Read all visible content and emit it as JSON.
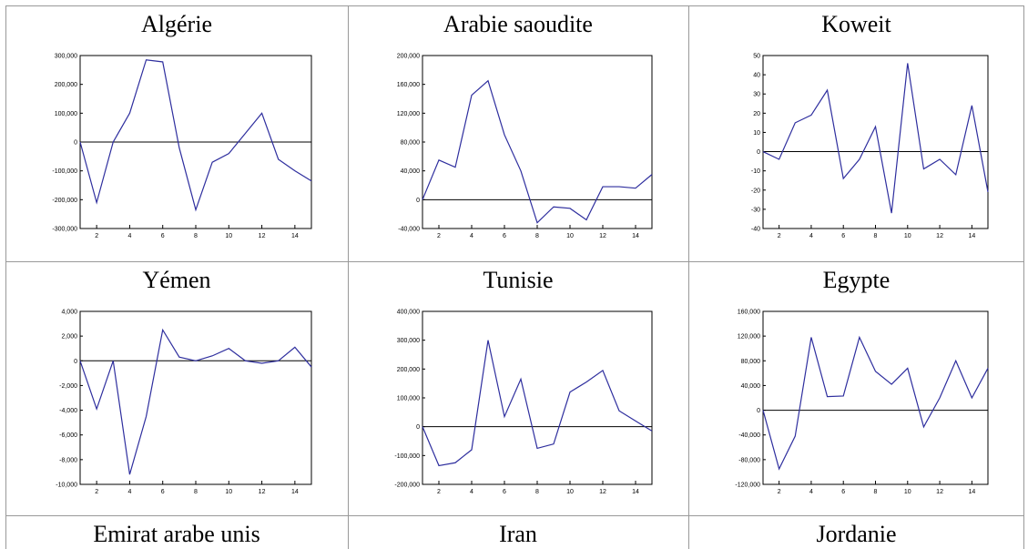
{
  "chart_data": [
    {
      "type": "line",
      "title": "Algérie",
      "color": "#2e2e9e",
      "zero_line": true,
      "x": [
        1,
        2,
        3,
        4,
        5,
        6,
        7,
        8,
        9,
        10,
        11,
        12,
        13,
        14,
        15
      ],
      "values": [
        0,
        -210000,
        0,
        100000,
        285000,
        278000,
        -20000,
        -235000,
        -70000,
        -40000,
        30000,
        100000,
        -60000,
        -100000,
        -135000
      ],
      "xlim": [
        1,
        15
      ],
      "xticks": [
        2,
        4,
        6,
        8,
        10,
        12,
        14
      ],
      "ylim": [
        -300000,
        300000
      ],
      "yticks": [
        {
          "value": -300000,
          "label": "-300,000"
        },
        {
          "value": -200000,
          "label": "-200,000"
        },
        {
          "value": -100000,
          "label": "-100,000"
        },
        0,
        {
          "value": 100000,
          "label": "100,000"
        },
        {
          "value": 200000,
          "label": "200,000"
        },
        {
          "value": 300000,
          "label": "300,000"
        }
      ]
    },
    {
      "type": "line",
      "title": "Arabie saoudite",
      "color": "#2e2e9e",
      "zero_line": true,
      "x": [
        1,
        2,
        3,
        4,
        5,
        6,
        7,
        8,
        9,
        10,
        11,
        12,
        13,
        14,
        15
      ],
      "values": [
        0,
        55000,
        45000,
        145000,
        165000,
        90000,
        40000,
        -32000,
        -10000,
        -12000,
        -28000,
        18000,
        18000,
        16000,
        35000
      ],
      "xlim": [
        1,
        15
      ],
      "xticks": [
        2,
        4,
        6,
        8,
        10,
        12,
        14
      ],
      "ylim": [
        -40000,
        200000
      ],
      "yticks": [
        {
          "value": -40000,
          "label": "-40,000"
        },
        0,
        {
          "value": 40000,
          "label": "40,000"
        },
        {
          "value": 80000,
          "label": "80,000"
        },
        {
          "value": 120000,
          "label": "120,000"
        },
        {
          "value": 160000,
          "label": "160,000"
        },
        {
          "value": 200000,
          "label": "200,000"
        }
      ]
    },
    {
      "type": "line",
      "title": "Koweit",
      "color": "#2e2e9e",
      "zero_line": true,
      "x": [
        1,
        2,
        3,
        4,
        5,
        6,
        7,
        8,
        9,
        10,
        11,
        12,
        13,
        14,
        15
      ],
      "values": [
        0,
        -4,
        15,
        19,
        32,
        -14,
        -4,
        13,
        -32,
        46,
        -9,
        -4,
        -12,
        24,
        -21
      ],
      "xlim": [
        1,
        15
      ],
      "xticks": [
        2,
        4,
        6,
        8,
        10,
        12,
        14
      ],
      "ylim": [
        -40,
        50
      ],
      "yticks": [
        -40,
        -30,
        -20,
        -10,
        0,
        10,
        20,
        30,
        40,
        50
      ]
    },
    {
      "type": "line",
      "title": "Yémen",
      "color": "#2e2e9e",
      "zero_line": true,
      "x": [
        1,
        2,
        3,
        4,
        5,
        6,
        7,
        8,
        9,
        10,
        11,
        12,
        13,
        14,
        15
      ],
      "values": [
        0,
        -3900,
        0,
        -9200,
        -4500,
        2500,
        300,
        0,
        400,
        1000,
        0,
        -200,
        0,
        1100,
        -500
      ],
      "xlim": [
        1,
        15
      ],
      "xticks": [
        2,
        4,
        6,
        8,
        10,
        12,
        14
      ],
      "ylim": [
        -10000,
        4000
      ],
      "yticks": [
        {
          "value": -10000,
          "label": "-10,000"
        },
        {
          "value": -8000,
          "label": "-8,000"
        },
        {
          "value": -6000,
          "label": "-6,000"
        },
        {
          "value": -4000,
          "label": "-4,000"
        },
        {
          "value": -2000,
          "label": "-2,000"
        },
        0,
        {
          "value": 2000,
          "label": "2,000"
        },
        {
          "value": 4000,
          "label": "4,000"
        }
      ]
    },
    {
      "type": "line",
      "title": "Tunisie",
      "color": "#2e2e9e",
      "zero_line": true,
      "x": [
        1,
        2,
        3,
        4,
        5,
        6,
        7,
        8,
        9,
        10,
        11,
        12,
        13,
        14,
        15
      ],
      "values": [
        0,
        -135000,
        -125000,
        -80000,
        300000,
        35000,
        165000,
        -75000,
        -60000,
        120000,
        155000,
        195000,
        55000,
        20000,
        -15000
      ],
      "xlim": [
        1,
        15
      ],
      "xticks": [
        2,
        4,
        6,
        8,
        10,
        12,
        14
      ],
      "ylim": [
        -200000,
        400000
      ],
      "yticks": [
        {
          "value": -200000,
          "label": "-200,000"
        },
        {
          "value": -100000,
          "label": "-100,000"
        },
        0,
        {
          "value": 100000,
          "label": "100,000"
        },
        {
          "value": 200000,
          "label": "200,000"
        },
        {
          "value": 300000,
          "label": "300,000"
        },
        {
          "value": 400000,
          "label": "400,000"
        }
      ]
    },
    {
      "type": "line",
      "title": "Egypte",
      "color": "#2e2e9e",
      "zero_line": true,
      "x": [
        1,
        2,
        3,
        4,
        5,
        6,
        7,
        8,
        9,
        10,
        11,
        12,
        13,
        14,
        15
      ],
      "values": [
        0,
        -95000,
        -42000,
        118000,
        22000,
        23000,
        118000,
        63000,
        42000,
        68000,
        -27000,
        20000,
        80000,
        20000,
        68000
      ],
      "xlim": [
        1,
        15
      ],
      "xticks": [
        2,
        4,
        6,
        8,
        10,
        12,
        14
      ],
      "ylim": [
        -120000,
        160000
      ],
      "yticks": [
        {
          "value": -120000,
          "label": "-120,000"
        },
        {
          "value": -80000,
          "label": "-80,000"
        },
        {
          "value": -40000,
          "label": "-40,000"
        },
        0,
        {
          "value": 40000,
          "label": "40,000"
        },
        {
          "value": 80000,
          "label": "80,000"
        },
        {
          "value": 120000,
          "label": "120,000"
        },
        {
          "value": 160000,
          "label": "160,000"
        }
      ]
    },
    {
      "type": "line",
      "title": "Emirat arabe unis"
    },
    {
      "type": "line",
      "title": "Iran"
    },
    {
      "type": "line",
      "title": "Jordanie"
    }
  ]
}
